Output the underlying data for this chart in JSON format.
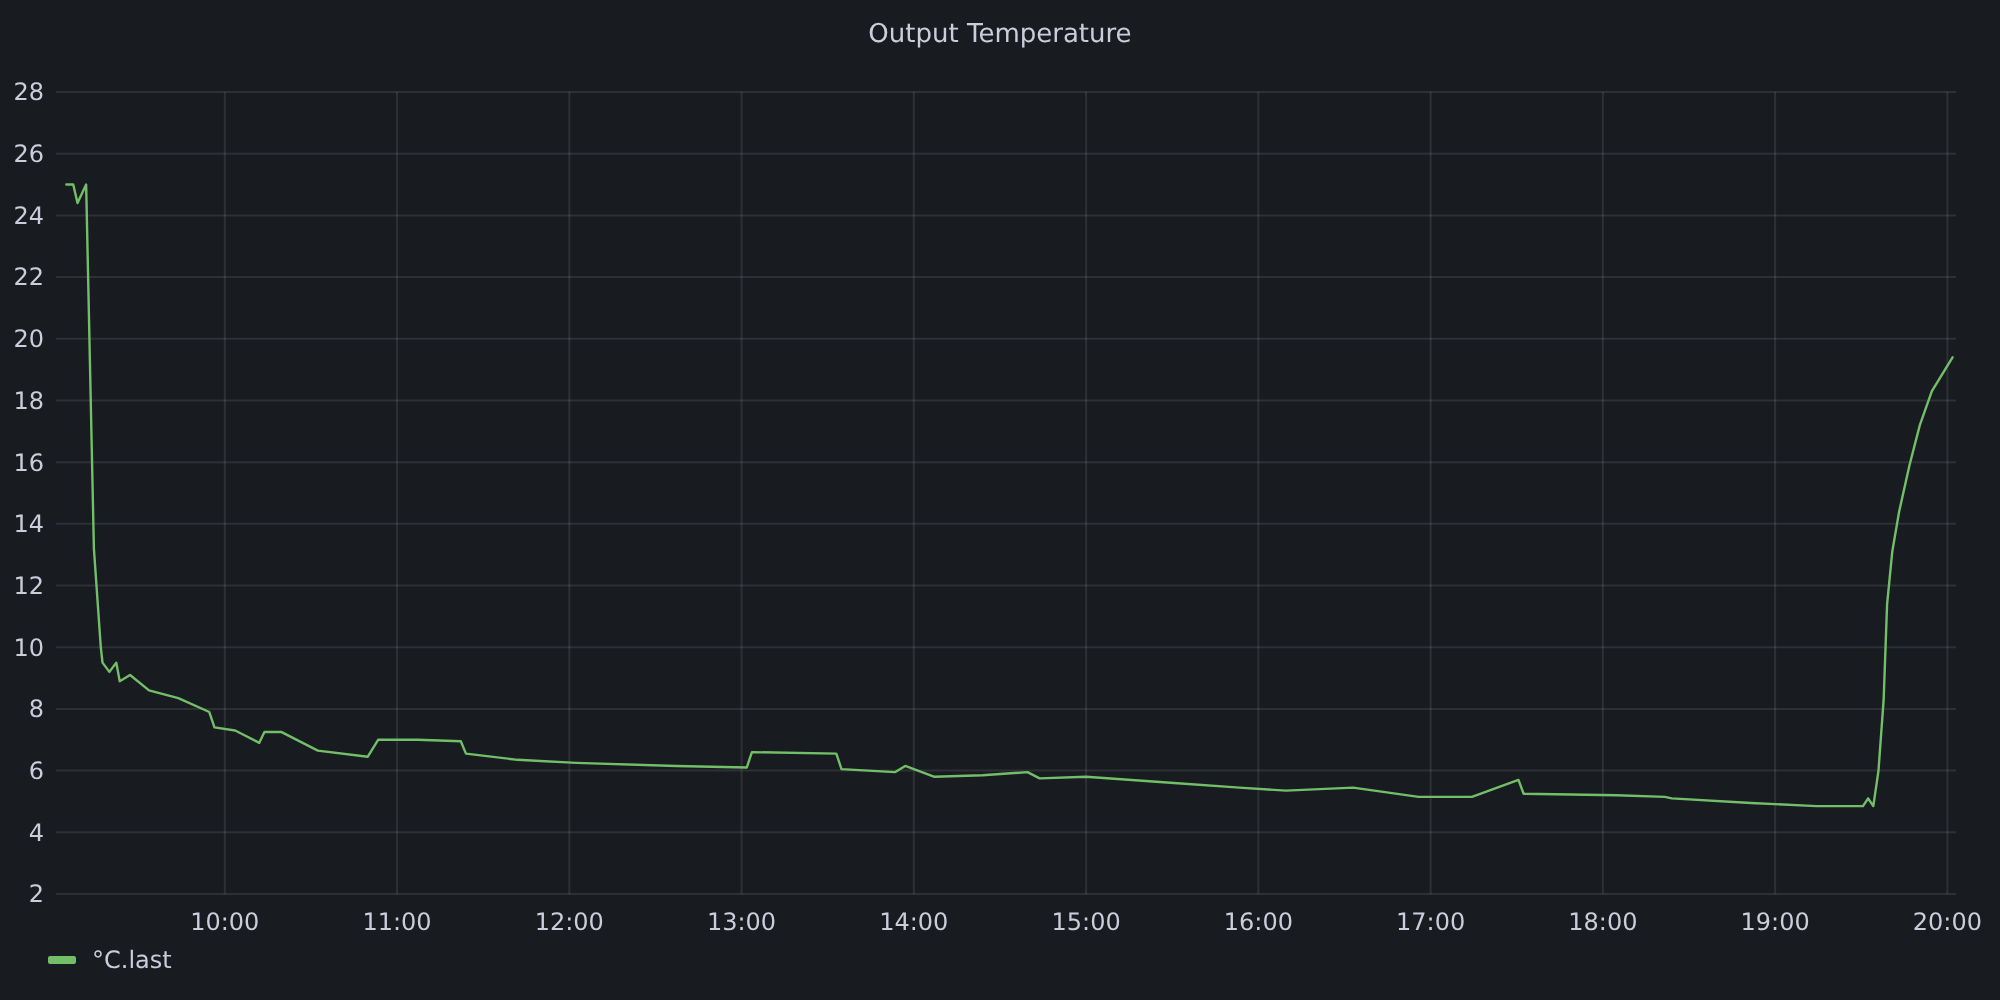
{
  "chart_data": {
    "type": "line",
    "title": "Output Temperature",
    "x": [
      9.08,
      9.12,
      9.145,
      9.195,
      9.24,
      9.28,
      9.29,
      9.33,
      9.37,
      9.39,
      9.45,
      9.56,
      9.73,
      9.91,
      9.94,
      10.06,
      10.2,
      10.23,
      10.33,
      10.54,
      10.83,
      10.89,
      11.12,
      11.37,
      11.4,
      11.7,
      12.04,
      12.62,
      13.03,
      13.06,
      13.55,
      13.58,
      13.89,
      13.95,
      14.12,
      14.4,
      14.66,
      14.73,
      15.0,
      15.51,
      15.89,
      16.16,
      16.55,
      16.93,
      17.24,
      17.51,
      17.54,
      18.08,
      18.36,
      18.4,
      18.86,
      19.24,
      19.51,
      19.54,
      19.57,
      19.6,
      19.63,
      19.65,
      19.68,
      19.72,
      19.78,
      19.84,
      19.91,
      20.03
    ],
    "series": [
      {
        "name": "°C.last",
        "color": "#73bf69",
        "values": [
          25.0,
          25.0,
          24.4,
          25.0,
          13.2,
          10.0,
          9.5,
          9.2,
          9.5,
          8.9,
          9.1,
          8.6,
          8.35,
          7.9,
          7.4,
          7.3,
          6.9,
          7.25,
          7.25,
          6.65,
          6.45,
          7.0,
          7.0,
          6.95,
          6.55,
          6.35,
          6.25,
          6.15,
          6.1,
          6.6,
          6.55,
          6.05,
          5.95,
          6.15,
          5.8,
          5.85,
          5.95,
          5.75,
          5.8,
          5.6,
          5.45,
          5.35,
          5.45,
          5.15,
          5.15,
          5.7,
          5.25,
          5.2,
          5.15,
          5.1,
          4.95,
          4.85,
          4.85,
          5.1,
          4.85,
          6.0,
          8.3,
          11.4,
          13.1,
          14.4,
          15.9,
          17.2,
          18.3,
          19.4
        ]
      }
    ],
    "xlim": [
      9.02,
      20.05
    ],
    "xticks": [
      {
        "value": 10,
        "label": "10:00"
      },
      {
        "value": 11,
        "label": "11:00"
      },
      {
        "value": 12,
        "label": "12:00"
      },
      {
        "value": 13,
        "label": "13:00"
      },
      {
        "value": 14,
        "label": "14:00"
      },
      {
        "value": 15,
        "label": "15:00"
      },
      {
        "value": 16,
        "label": "16:00"
      },
      {
        "value": 17,
        "label": "17:00"
      },
      {
        "value": 18,
        "label": "18:00"
      },
      {
        "value": 19,
        "label": "19:00"
      },
      {
        "value": 20,
        "label": "20:00"
      }
    ],
    "ylim": [
      2,
      28
    ],
    "yticks": [
      2,
      4,
      6,
      8,
      10,
      12,
      14,
      16,
      18,
      20,
      22,
      24,
      26,
      28
    ],
    "grid": true,
    "legend": "bottom left",
    "marker": "none",
    "line_style": "solid"
  }
}
